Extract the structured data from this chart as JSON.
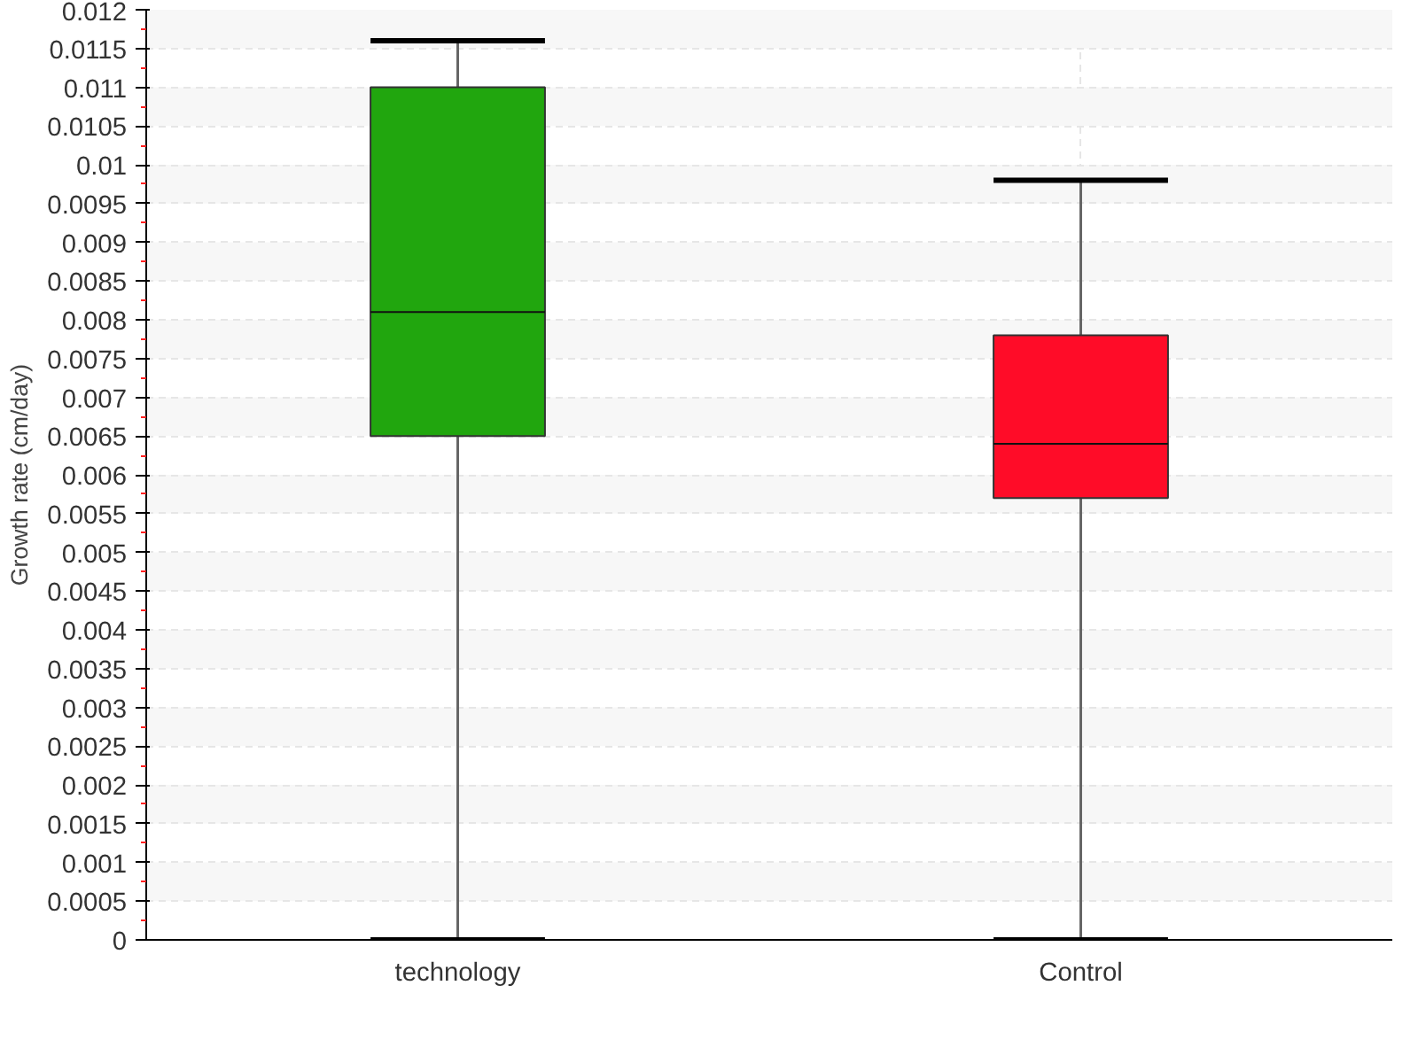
{
  "chart_data": {
    "type": "box",
    "ylabel": "Growth rate (cm/day)",
    "categories": [
      "technology",
      "Control"
    ],
    "series": [
      {
        "color": "#21a60e",
        "boxes": [
          {
            "low": 0,
            "q1": 0.0065,
            "median": 0.0081,
            "q3": 0.011,
            "high": 0.0116
          },
          null
        ]
      },
      {
        "color": "#ff0c28",
        "boxes": [
          null,
          {
            "low": 0,
            "q1": 0.0057,
            "median": 0.0064,
            "q3": 0.0078,
            "high": 0.0098
          }
        ]
      }
    ],
    "ylim": [
      0,
      0.012
    ],
    "yticks": [
      0,
      0.0005,
      0.001,
      0.0015,
      0.002,
      0.0025,
      0.003,
      0.0035,
      0.004,
      0.0045,
      0.005,
      0.0055,
      0.006,
      0.0065,
      0.007,
      0.0075,
      0.008,
      0.0085,
      0.009,
      0.0095,
      0.01,
      0.0105,
      0.011,
      0.0115,
      0.012
    ],
    "grid": true
  }
}
